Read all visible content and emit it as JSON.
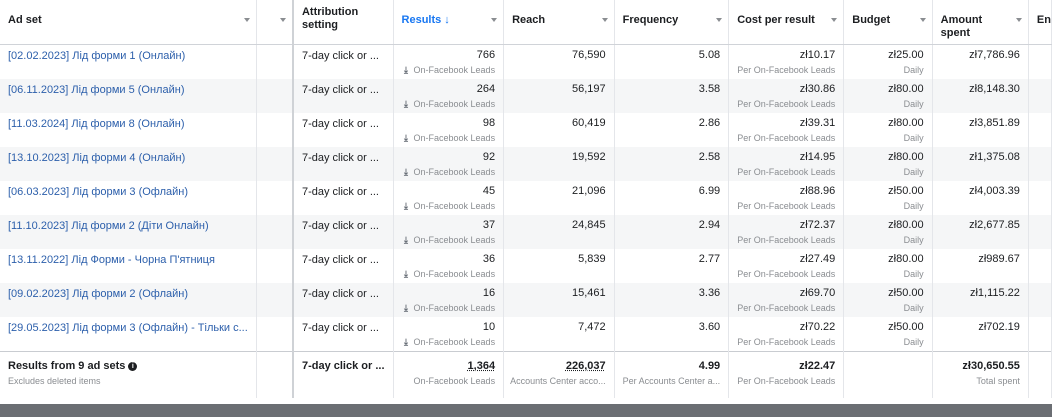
{
  "columns": {
    "ad_set": "Ad set",
    "attribution": "Attribution setting",
    "results": "Results ↓",
    "reach": "Reach",
    "frequency": "Frequency",
    "cpr": "Cost per result",
    "budget": "Budget",
    "amount_spent": "Amount spent",
    "ends": "En"
  },
  "rows": [
    {
      "name": "[02.02.2023] Лід форми 1 (Онлайн)",
      "attr": "7-day click or ...",
      "results": "766",
      "results_sub": "On-Facebook Leads",
      "reach": "76,590",
      "freq": "5.08",
      "cpr": "zł10.17",
      "cpr_sub": "Per On-Facebook Leads",
      "budget": "zł25.00",
      "budget_sub": "Daily",
      "spent": "zł7,786.96"
    },
    {
      "name": "[06.11.2023] Лід форми 5 (Онлайн)",
      "attr": "7-day click or ...",
      "results": "264",
      "results_sub": "On-Facebook Leads",
      "reach": "56,197",
      "freq": "3.58",
      "cpr": "zł30.86",
      "cpr_sub": "Per On-Facebook Leads",
      "budget": "zł80.00",
      "budget_sub": "Daily",
      "spent": "zł8,148.30"
    },
    {
      "name": "[11.03.2024] Лід форми 8 (Онлайн)",
      "attr": "7-day click or ...",
      "results": "98",
      "results_sub": "On-Facebook Leads",
      "reach": "60,419",
      "freq": "2.86",
      "cpr": "zł39.31",
      "cpr_sub": "Per On-Facebook Leads",
      "budget": "zł80.00",
      "budget_sub": "Daily",
      "spent": "zł3,851.89"
    },
    {
      "name": "[13.10.2023] Лід форми 4 (Онлайн)",
      "attr": "7-day click or ...",
      "results": "92",
      "results_sub": "On-Facebook Leads",
      "reach": "19,592",
      "freq": "2.58",
      "cpr": "zł14.95",
      "cpr_sub": "Per On-Facebook Leads",
      "budget": "zł80.00",
      "budget_sub": "Daily",
      "spent": "zł1,375.08"
    },
    {
      "name": "[06.03.2023] Лід форми 3 (Офлайн)",
      "attr": "7-day click or ...",
      "results": "45",
      "results_sub": "On-Facebook Leads",
      "reach": "21,096",
      "freq": "6.99",
      "cpr": "zł88.96",
      "cpr_sub": "Per On-Facebook Leads",
      "budget": "zł50.00",
      "budget_sub": "Daily",
      "spent": "zł4,003.39"
    },
    {
      "name": "[11.10.2023] Лід форми 2 (Діти Онлайн)",
      "attr": "7-day click or ...",
      "results": "37",
      "results_sub": "On-Facebook Leads",
      "reach": "24,845",
      "freq": "2.94",
      "cpr": "zł72.37",
      "cpr_sub": "Per On-Facebook Leads",
      "budget": "zł80.00",
      "budget_sub": "Daily",
      "spent": "zł2,677.85"
    },
    {
      "name": "[13.11.2022] Лід Форми - Чорна П'ятниця",
      "attr": "7-day click or ...",
      "results": "36",
      "results_sub": "On-Facebook Leads",
      "reach": "5,839",
      "freq": "2.77",
      "cpr": "zł27.49",
      "cpr_sub": "Per On-Facebook Leads",
      "budget": "zł80.00",
      "budget_sub": "Daily",
      "spent": "zł989.67"
    },
    {
      "name": "[09.02.2023] Лід форми 2 (Офлайн)",
      "attr": "7-day click or ...",
      "results": "16",
      "results_sub": "On-Facebook Leads",
      "reach": "15,461",
      "freq": "3.36",
      "cpr": "zł69.70",
      "cpr_sub": "Per On-Facebook Leads",
      "budget": "zł50.00",
      "budget_sub": "Daily",
      "spent": "zł1,115.22"
    },
    {
      "name": "[29.05.2023] Лід форми 3 (Офлайн) - Тільки с...",
      "attr": "7-day click or ...",
      "results": "10",
      "results_sub": "On-Facebook Leads",
      "reach": "7,472",
      "freq": "3.60",
      "cpr": "zł70.22",
      "cpr_sub": "Per On-Facebook Leads",
      "budget": "zł50.00",
      "budget_sub": "Daily",
      "spent": "zł702.19"
    }
  ],
  "totals": {
    "label": "Results from 9 ad sets",
    "label_sub": "Excludes deleted items",
    "attr": "7-day click or ...",
    "results": "1,364",
    "results_sub": "On-Facebook Leads",
    "reach": "226,037",
    "reach_sub": "Accounts Center acco...",
    "freq": "4.99",
    "freq_sub": "Per Accounts Center a...",
    "cpr": "zł22.47",
    "cpr_sub": "Per On-Facebook Leads",
    "spent": "zł30,650.55",
    "spent_sub": "Total spent"
  },
  "icons": {
    "download": "download-icon",
    "info": "info-icon",
    "sort": "sort-desc-icon"
  },
  "colors": {
    "link": "#2c5fab",
    "accent": "#1877f2",
    "muted": "#8a8d91"
  }
}
